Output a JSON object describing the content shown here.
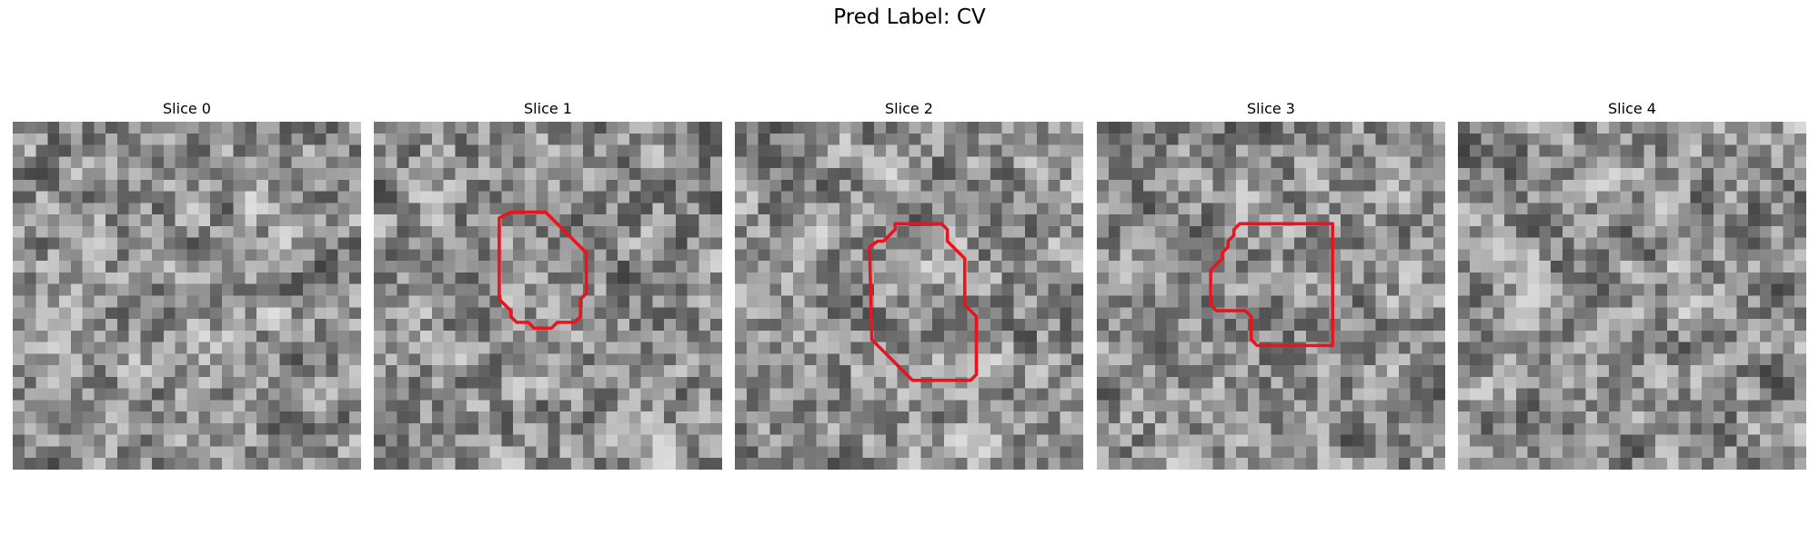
{
  "suptitle": "Pred Label: CV",
  "slices": [
    {
      "title": "Slice 0",
      "has_contour": false
    },
    {
      "title": "Slice 1",
      "has_contour": true
    },
    {
      "title": "Slice 2",
      "has_contour": true
    },
    {
      "title": "Slice 3",
      "has_contour": true
    },
    {
      "title": "Slice 4",
      "has_contour": false
    }
  ],
  "colors": {
    "contour": "#e8141e",
    "background": "#ffffff"
  },
  "image_colormap": "grayscale"
}
